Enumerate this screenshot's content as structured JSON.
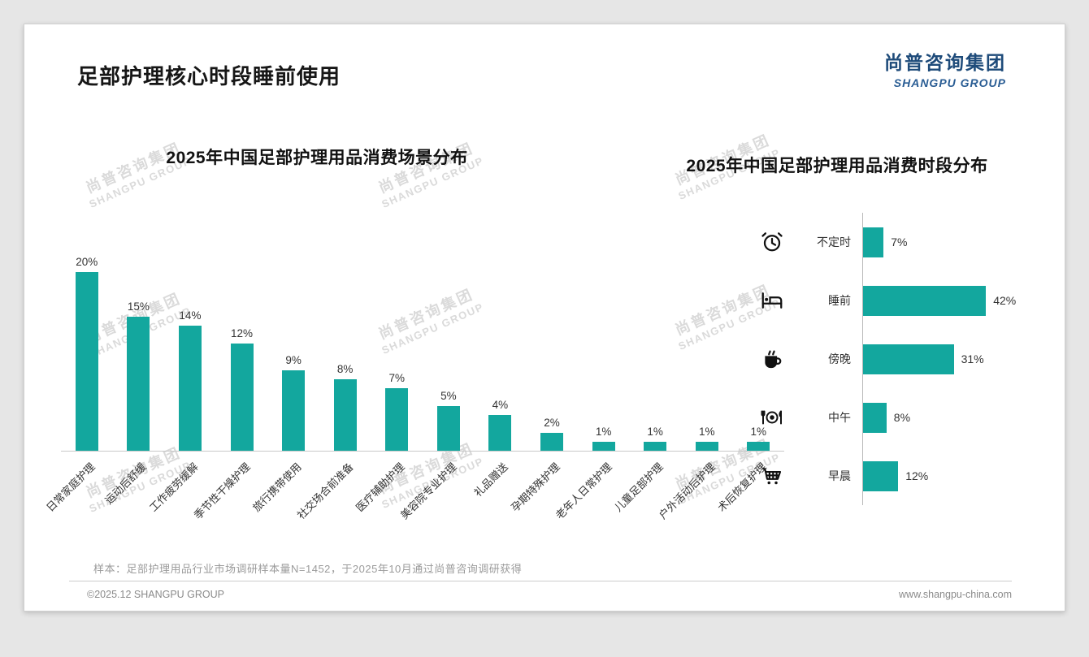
{
  "slide": {
    "title": "足部护理核心时段睡前使用",
    "logo": {
      "cn": "尚普咨询集团",
      "en": "SHANGPU GROUP"
    },
    "note": "样本：足部护理用品行业市场调研样本量N=1452，于2025年10月通过尚普咨询调研获得",
    "footer": {
      "left": "©2025.12 SHANGPU GROUP",
      "right": "www.shangpu-china.com"
    },
    "watermark": {
      "line1": "尚普咨询集团",
      "line2": "SHANGPU GROUP"
    },
    "accent_color": "#13a79e",
    "logo_color": "#1e4b7a",
    "logo_en_color": "#2a5d94"
  },
  "chart_data": [
    {
      "type": "bar",
      "title": "2025年中国足部护理用品消费场景分布",
      "categories": [
        "日常家庭护理",
        "运动后舒缓",
        "工作疲劳缓解",
        "季节性干燥护理",
        "旅行携带使用",
        "社交场合前准备",
        "医疗辅助护理",
        "美容院专业护理",
        "礼品赠送",
        "孕期特殊护理",
        "老年人日常护理",
        "儿童足部护理",
        "户外活动后护理",
        "术后恢复护理"
      ],
      "values": [
        20,
        15,
        14,
        12,
        9,
        8,
        7,
        5,
        4,
        2,
        1,
        1,
        1,
        1
      ],
      "unit": "%",
      "ylim": [
        0,
        20
      ],
      "bar_color": "#13a79e",
      "grid": false,
      "value_labels": true,
      "tick_label_rotation": 45
    },
    {
      "type": "bar-horizontal",
      "title": "2025年中国足部护理用品消费时段分布",
      "categories": [
        "不定时",
        "睡前",
        "傍晚",
        "中午",
        "早晨"
      ],
      "values": [
        7,
        42,
        31,
        8,
        12
      ],
      "icons": [
        "alarm-clock",
        "bed",
        "coffee",
        "meal",
        "cart"
      ],
      "unit": "%",
      "xlim": [
        0,
        50
      ],
      "bar_color": "#13a79e",
      "grid": false,
      "value_labels": true
    }
  ]
}
